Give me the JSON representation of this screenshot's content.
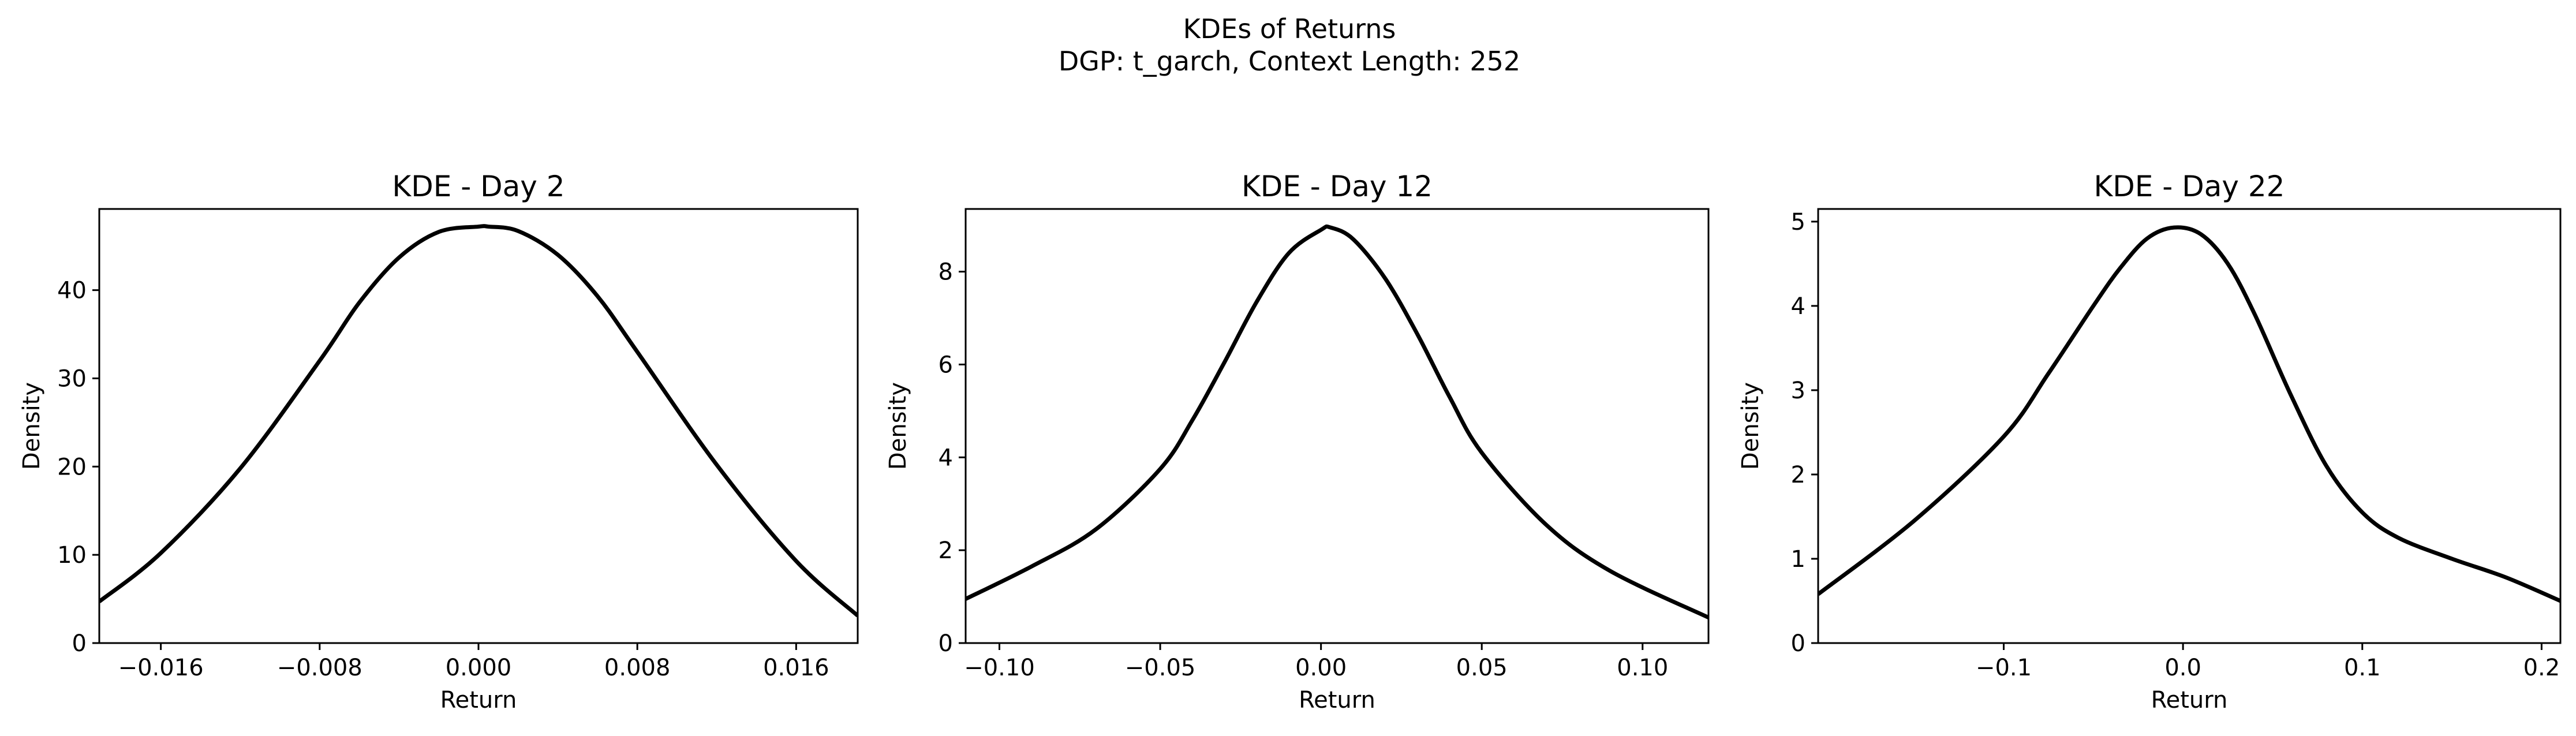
{
  "figure": {
    "suptitle_line1": "KDEs of Returns",
    "suptitle_line2": "DGP: t_garch, Context Length: 252"
  },
  "chart_data": [
    {
      "type": "line",
      "title": "KDE - Day 2",
      "xlabel": "Return",
      "ylabel": "Density",
      "xlim": [
        -0.0191,
        0.0191
      ],
      "ylim": [
        0,
        49.2
      ],
      "xticks": [
        -0.016,
        -0.008,
        0.0,
        0.008,
        0.016
      ],
      "xtick_labels": [
        "−0.016",
        "−0.008",
        "0.000",
        "0.008",
        "0.016"
      ],
      "yticks": [
        0,
        10,
        20,
        30,
        40
      ],
      "ytick_labels": [
        "0",
        "10",
        "20",
        "30",
        "40"
      ],
      "line_color": "#000000",
      "series": [
        {
          "x": [
            -0.0191,
            -0.016,
            -0.012,
            -0.008,
            -0.006,
            -0.004,
            -0.002,
            0.0,
            0.0005,
            0.002,
            0.004,
            0.006,
            0.008,
            0.012,
            0.016,
            0.0191
          ],
          "y": [
            4.7,
            10.2,
            19.8,
            32.0,
            38.6,
            43.7,
            46.6,
            47.2,
            47.2,
            46.7,
            44.0,
            39.3,
            33.0,
            20.2,
            9.3,
            3.1
          ]
        }
      ]
    },
    {
      "type": "line",
      "title": "KDE - Day 12",
      "xlabel": "Return",
      "ylabel": "Density",
      "xlim": [
        -0.1105,
        0.1205
      ],
      "ylim": [
        0,
        9.35
      ],
      "xticks": [
        -0.1,
        -0.05,
        0.0,
        0.05,
        0.1
      ],
      "xtick_labels": [
        "−0.10",
        "−0.05",
        "0.00",
        "0.05",
        "0.10"
      ],
      "yticks": [
        0,
        2,
        4,
        6,
        8
      ],
      "ytick_labels": [
        "0",
        "2",
        "4",
        "6",
        "8"
      ],
      "line_color": "#000000",
      "series": [
        {
          "x": [
            -0.1105,
            -0.09,
            -0.07,
            -0.05,
            -0.04,
            -0.03,
            -0.02,
            -0.01,
            0.0,
            0.003,
            0.01,
            0.02,
            0.03,
            0.04,
            0.05,
            0.07,
            0.09,
            0.1205
          ],
          "y": [
            0.95,
            1.65,
            2.45,
            3.75,
            4.8,
            6.05,
            7.35,
            8.4,
            8.9,
            8.95,
            8.7,
            7.85,
            6.65,
            5.3,
            4.1,
            2.55,
            1.55,
            0.55
          ]
        }
      ]
    },
    {
      "type": "line",
      "title": "KDE - Day 22",
      "xlabel": "Return",
      "ylabel": "Density",
      "xlim": [
        -0.2035,
        0.2105
      ],
      "ylim": [
        0,
        5.15
      ],
      "xticks": [
        -0.1,
        0.0,
        0.1,
        0.2
      ],
      "xtick_labels": [
        "−0.1",
        "0.0",
        "0.1",
        "0.2"
      ],
      "yticks": [
        0,
        1,
        2,
        3,
        4,
        5
      ],
      "ytick_labels": [
        "0",
        "1",
        "2",
        "3",
        "4",
        "5"
      ],
      "line_color": "#000000",
      "series": [
        {
          "x": [
            -0.2035,
            -0.15,
            -0.1,
            -0.075,
            -0.05,
            -0.035,
            -0.02,
            -0.005,
            0.01,
            0.025,
            0.04,
            0.06,
            0.08,
            0.1,
            0.12,
            0.15,
            0.18,
            0.2105
          ],
          "y": [
            0.58,
            1.45,
            2.45,
            3.2,
            4.0,
            4.45,
            4.8,
            4.93,
            4.85,
            4.5,
            3.9,
            2.95,
            2.1,
            1.55,
            1.25,
            1.0,
            0.78,
            0.5
          ]
        }
      ]
    }
  ]
}
